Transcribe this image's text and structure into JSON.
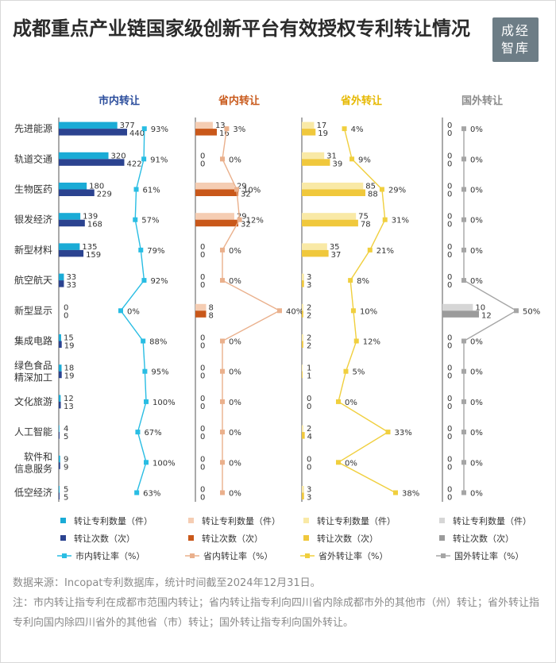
{
  "header": {
    "title": "成都重点产业链国家级创新平台有效授权专利转让情况",
    "logo": "成经智库"
  },
  "chart_data": {
    "type": "bar",
    "categories": [
      "先进能源",
      "轨道交通",
      "生物医药",
      "银发经济",
      "新型材料",
      "航空航天",
      "新型显示",
      "集成电路",
      "绿色食品精深加工",
      "文化旅游",
      "人工智能",
      "软件和信息服务",
      "低空经济"
    ],
    "panels": [
      {
        "name": "市内转让",
        "colors": {
          "title": "#2b4d9c",
          "patents": "#1aabd6",
          "times": "#2b4390",
          "rate": "#29bde3"
        },
        "patents": [
          377,
          320,
          180,
          139,
          135,
          33,
          0,
          15,
          18,
          12,
          4,
          9,
          5
        ],
        "times": [
          440,
          422,
          229,
          168,
          159,
          33,
          0,
          19,
          19,
          13,
          5,
          9,
          5
        ],
        "rate": [
          93,
          91,
          61,
          57,
          79,
          92,
          0,
          88,
          95,
          100,
          67,
          100,
          63
        ],
        "legend": {
          "patents": "转让专利数量（件）",
          "times": "转让次数（次）",
          "rate": "市内转让率（%）"
        }
      },
      {
        "name": "省内转让",
        "colors": {
          "title": "#c95a1c",
          "patents": "#f5cdb3",
          "times": "#c9581a",
          "rate": "#eab08c"
        },
        "patents": [
          13,
          0,
          29,
          29,
          0,
          0,
          8,
          0,
          0,
          0,
          0,
          0,
          0
        ],
        "times": [
          16,
          0,
          32,
          32,
          0,
          0,
          8,
          0,
          0,
          0,
          0,
          0,
          0
        ],
        "rate": [
          3,
          0,
          10,
          12,
          0,
          0,
          40,
          0,
          0,
          0,
          0,
          0,
          0
        ],
        "legend": {
          "patents": "转让专利数量（件）",
          "times": "转让次数（次）",
          "rate": "省内转让率（%）"
        }
      },
      {
        "name": "省外转让",
        "colors": {
          "title": "#e6b800",
          "patents": "#f9e9a6",
          "times": "#f0c83c",
          "rate": "#f0cf3e"
        },
        "patents": [
          17,
          31,
          85,
          75,
          35,
          3,
          2,
          2,
          1,
          0,
          2,
          0,
          3
        ],
        "times": [
          19,
          39,
          88,
          78,
          37,
          3,
          2,
          2,
          1,
          0,
          4,
          0,
          3
        ],
        "rate": [
          4,
          9,
          29,
          31,
          21,
          8,
          10,
          12,
          5,
          0,
          33,
          0,
          38
        ],
        "legend": {
          "patents": "转让专利数量（件）",
          "times": "转让次数（次）",
          "rate": "省外转让率（%）"
        }
      },
      {
        "name": "国外转让",
        "colors": {
          "title": "#8c8c8c",
          "patents": "#d6d6d6",
          "times": "#9b9b9b",
          "rate": "#a5a5a5"
        },
        "patents": [
          0,
          0,
          0,
          0,
          0,
          0,
          10,
          0,
          0,
          0,
          0,
          0,
          0
        ],
        "times": [
          0,
          0,
          0,
          0,
          0,
          0,
          12,
          0,
          0,
          0,
          0,
          0,
          0
        ],
        "rate": [
          0,
          0,
          0,
          0,
          0,
          0,
          50,
          0,
          0,
          0,
          0,
          0,
          0
        ],
        "legend": {
          "patents": "转让专利数量（件）",
          "times": "转让次数（次）",
          "rate": "国外转让率（%）"
        }
      }
    ]
  },
  "footer": {
    "source": "数据来源：Incopat专利数据库，统计时间截至2024年12月31日。",
    "note": "注：市内转让指专利在成都市范围内转让；省内转让指专利向四川省内除成都市外的其他市（州）转让；省外转让指专利向国内除四川省外的其他省（市）转让；国外转让指专利向国外转让。"
  }
}
